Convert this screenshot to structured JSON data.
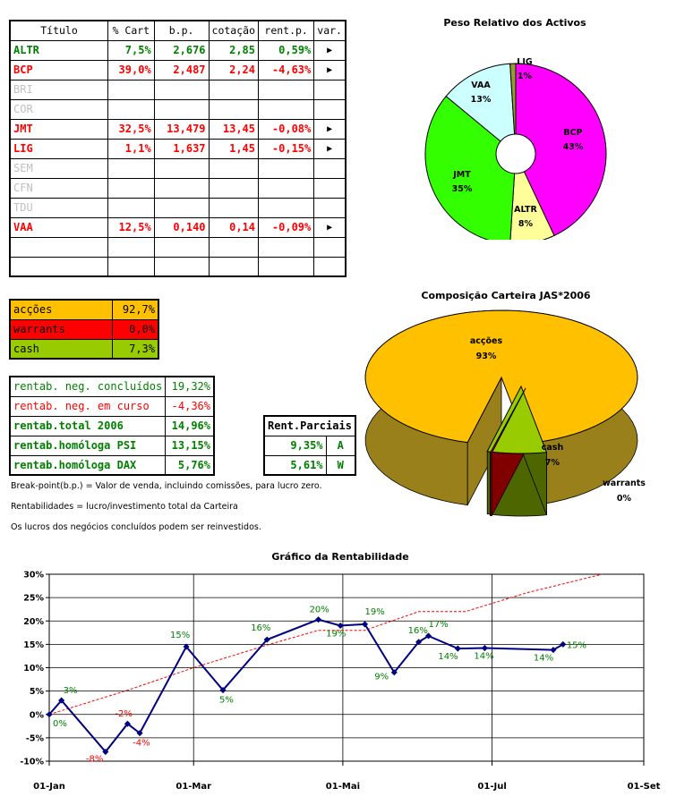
{
  "portfolio_table": {
    "headers": [
      "Título",
      "% Cart",
      "b.p.",
      "cotação",
      "rent.p.",
      "var."
    ],
    "rows": [
      {
        "ticker": "ALTR",
        "color": "#008000",
        "cart": "7,5%",
        "bp": "2,676",
        "cot": "2,85",
        "rent": "0,59%",
        "var": "▶"
      },
      {
        "ticker": "BCP",
        "color": "#ff0000",
        "cart": "39,0%",
        "bp": "2,487",
        "cot": "2,24",
        "rent": "-4,63%",
        "var": "▶"
      },
      {
        "ticker": "BRI",
        "color": "#c0c0c0",
        "cart": "",
        "bp": "",
        "cot": "",
        "rent": "",
        "var": ""
      },
      {
        "ticker": "COR",
        "color": "#c0c0c0",
        "cart": "",
        "bp": "",
        "cot": "",
        "rent": "",
        "var": ""
      },
      {
        "ticker": "JMT",
        "color": "#ff0000",
        "cart": "32,5%",
        "bp": "13,479",
        "cot": "13,45",
        "rent": "-0,08%",
        "var": "▶"
      },
      {
        "ticker": "LIG",
        "color": "#ff0000",
        "cart": "1,1%",
        "bp": "1,637",
        "cot": "1,45",
        "rent": "-0,15%",
        "var": "▶"
      },
      {
        "ticker": "SEM",
        "color": "#c0c0c0",
        "cart": "",
        "bp": "",
        "cot": "",
        "rent": "",
        "var": ""
      },
      {
        "ticker": "CFN",
        "color": "#c0c0c0",
        "cart": "",
        "bp": "",
        "cot": "",
        "rent": "",
        "var": ""
      },
      {
        "ticker": "TDU",
        "color": "#c0c0c0",
        "cart": "",
        "bp": "",
        "cot": "",
        "rent": "",
        "var": ""
      },
      {
        "ticker": "VAA",
        "color": "#ff0000",
        "cart": "12,5%",
        "bp": "0,140",
        "cot": "0,14",
        "rent": "-0,09%",
        "var": "▶"
      },
      {
        "ticker": "",
        "color": "#000000",
        "cart": "",
        "bp": "",
        "cot": "",
        "rent": "",
        "var": ""
      },
      {
        "ticker": "",
        "color": "#000000",
        "cart": "",
        "bp": "",
        "cot": "",
        "rent": "",
        "var": ""
      }
    ]
  },
  "allocation_table": [
    {
      "label": "acções",
      "value": "92,7%",
      "bg": "#ffc000"
    },
    {
      "label": "warrants",
      "value": "0,0%",
      "bg": "#ff0000"
    },
    {
      "label": "cash",
      "value": "7,3%",
      "bg": "#99cc00"
    }
  ],
  "returns_table": [
    {
      "label": "rentab. neg. concluídos",
      "value": "19,32%",
      "color": "#008000",
      "bold": false
    },
    {
      "label": "rentab. neg. em curso",
      "value": "-4,36%",
      "color": "#ff0000",
      "bold": false
    },
    {
      "label": "rentab.total 2006",
      "value": "14,96%",
      "color": "#008000",
      "bold": true
    },
    {
      "label": "rentab.homóloga PSI",
      "value": "13,15%",
      "color": "#008000",
      "bold": true
    },
    {
      "label": "rentab.homóloga DAX",
      "value": "5,76%",
      "color": "#008000",
      "bold": true
    }
  ],
  "partial_returns": {
    "header": "Rent.Parciais",
    "rows": [
      {
        "value": "9,35%",
        "tag": "A"
      },
      {
        "value": "5,61%",
        "tag": "W"
      }
    ]
  },
  "notes": [
    "Break-point(b.p.) = Valor de venda, incluindo comissões, para lucro zero.",
    "Rentabilidades = lucro/investimento total da Carteira",
    "Os lucros dos negócios concluídos podem ser reinvestidos."
  ],
  "chart_data": [
    {
      "type": "pie",
      "variant": "doughnut",
      "title": "Peso Relativo dos Activos",
      "slices": [
        {
          "label": "BCP",
          "value": 43,
          "text": "43%",
          "color": "#ff00ff"
        },
        {
          "label": "ALTR",
          "value": 8,
          "text": "8%",
          "color": "#ffff99"
        },
        {
          "label": "JMT",
          "value": 35,
          "text": "35%",
          "color": "#33ff00"
        },
        {
          "label": "VAA",
          "value": 13,
          "text": "13%",
          "color": "#ccffff"
        },
        {
          "label": "LIG",
          "value": 1,
          "text": "1%",
          "color": "#999933"
        }
      ]
    },
    {
      "type": "pie",
      "variant": "3d-exploded",
      "title": "Composição Carteira JAS*2006",
      "slices": [
        {
          "label": "acções",
          "value": 93,
          "text": "93%",
          "color": "#ffc000",
          "side": "#99801a"
        },
        {
          "label": "cash",
          "value": 7,
          "text": "7%",
          "color": "#99cc00",
          "side": "#4d6600"
        },
        {
          "label": "warrants",
          "value": 0,
          "text": "0%",
          "color": "#ff0000",
          "side": "#800000"
        }
      ]
    },
    {
      "type": "line",
      "title": "Gráfico da Rentabilidade",
      "x_tick_labels": [
        "01-Jan",
        "01-Mar",
        "01-Mai",
        "01-Jul",
        "01-Set"
      ],
      "x_range": [
        "2006-01-01",
        "2006-09-01"
      ],
      "ylim": [
        -10,
        30
      ],
      "y_ticks": [
        "-10%",
        "-5%",
        "0%",
        "5%",
        "10%",
        "15%",
        "20%",
        "25%",
        "30%"
      ],
      "grid": true,
      "series": [
        {
          "color": "#000080",
          "style": "solid-markers",
          "points": [
            {
              "x": "2006-01-01",
              "y": 0,
              "label": "0%",
              "label_color": "#008000"
            },
            {
              "x": "2006-01-06",
              "y": 3,
              "label": "3%",
              "label_color": "#008000"
            },
            {
              "x": "2006-01-24",
              "y": -8,
              "label": "-8%",
              "label_color": "#ff0000"
            },
            {
              "x": "2006-02-02",
              "y": -2,
              "label": "-2%",
              "label_color": "#ff0000"
            },
            {
              "x": "2006-02-07",
              "y": -4,
              "label": "-4%",
              "label_color": "#ff0000"
            },
            {
              "x": "2006-02-26",
              "y": 14.5,
              "label": "15%",
              "label_color": "#008000"
            },
            {
              "x": "2006-03-13",
              "y": 5.2,
              "label": "5%",
              "label_color": "#008000"
            },
            {
              "x": "2006-03-31",
              "y": 16,
              "label": "16%",
              "label_color": "#008000"
            },
            {
              "x": "2006-04-21",
              "y": 20.3,
              "label": "20%",
              "label_color": "#008000"
            },
            {
              "x": "2006-04-30",
              "y": 19,
              "label": "19%",
              "label_color": "#008000"
            },
            {
              "x": "2006-05-10",
              "y": 19.3,
              "label": "19%",
              "label_color": "#008000"
            },
            {
              "x": "2006-05-22",
              "y": 9,
              "label": "9%",
              "label_color": "#008000"
            },
            {
              "x": "2006-06-01",
              "y": 15.5,
              "label": "16%",
              "label_color": "#008000"
            },
            {
              "x": "2006-06-05",
              "y": 16.8,
              "label": "17%",
              "label_color": "#008000"
            },
            {
              "x": "2006-06-17",
              "y": 14.1,
              "label": "14%",
              "label_color": "#008000"
            },
            {
              "x": "2006-06-28",
              "y": 14.2,
              "label": "14%",
              "label_color": "#008000"
            },
            {
              "x": "2006-07-26",
              "y": 13.8,
              "label": "14%",
              "label_color": "#008000"
            },
            {
              "x": "2006-07-30",
              "y": 15,
              "label": "15%",
              "label_color": "#008000"
            }
          ]
        },
        {
          "color": "#ff0000",
          "style": "dotted",
          "points": [
            {
              "x": "2006-01-01",
              "y": 0
            },
            {
              "x": "2006-02-01",
              "y": 5
            },
            {
              "x": "2006-03-01",
              "y": 10
            },
            {
              "x": "2006-04-01",
              "y": 15
            },
            {
              "x": "2006-04-21",
              "y": 18
            },
            {
              "x": "2006-05-10",
              "y": 18
            },
            {
              "x": "2006-06-01",
              "y": 22
            },
            {
              "x": "2006-06-20",
              "y": 22
            },
            {
              "x": "2006-07-15",
              "y": 26
            },
            {
              "x": "2006-08-15",
              "y": 30
            }
          ]
        }
      ]
    }
  ]
}
